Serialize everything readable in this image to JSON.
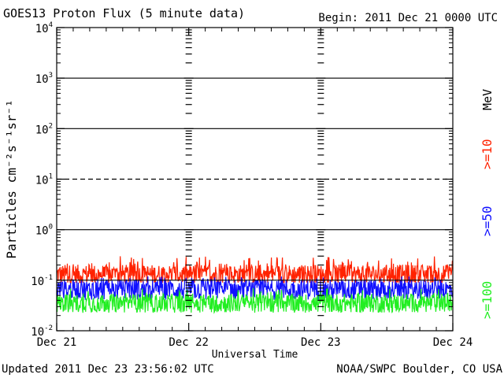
{
  "header": {
    "title": "GOES13 Proton Flux (5 minute data)",
    "begin": "Begin: 2011 Dec 21 0000 UTC"
  },
  "footer": {
    "updated": "Updated 2011 Dec 23 23:56:02 UTC",
    "credit": "NOAA/SWPC Boulder, CO USA"
  },
  "chart_data": {
    "type": "line",
    "title": "GOES13 Proton Flux (5 minute data)",
    "xlabel": "Universal Time",
    "ylabel": "Particles cm⁻²s⁻¹sr⁻¹",
    "yscale": "log",
    "ylim": [
      0.01,
      10000
    ],
    "xlim": [
      0,
      3
    ],
    "x_tick_labels": [
      "Dec 21",
      "Dec 22",
      "Dec 23",
      "Dec 24"
    ],
    "y_tick_labels": [
      {
        "base": "10",
        "exp": "4"
      },
      {
        "base": "10",
        "exp": "3"
      },
      {
        "base": "10",
        "exp": "2"
      },
      {
        "base": "10",
        "exp": "1"
      },
      {
        "base": "10",
        "exp": "0"
      },
      {
        "base": "10",
        "exp": "-1"
      },
      {
        "base": "10",
        "exp": "-2"
      }
    ],
    "threshold_lines": [
      {
        "value": 1000,
        "style": "solid"
      },
      {
        "value": 100,
        "style": "solid"
      },
      {
        "value": 10,
        "style": "dashed"
      },
      {
        "value": 1,
        "style": "solid"
      },
      {
        "value": 0.1,
        "style": "solid"
      }
    ],
    "energy_unit": "MeV",
    "series": [
      {
        "name": ">=10",
        "color": "#ff2200",
        "baseline": 0.13,
        "min": 0.09,
        "max": 0.3
      },
      {
        "name": ">=50",
        "color": "#1010ff",
        "baseline": 0.065,
        "min": 0.035,
        "max": 0.12
      },
      {
        "name": ">=100",
        "color": "#22ee22",
        "baseline": 0.035,
        "min": 0.022,
        "max": 0.07
      }
    ],
    "grid": false,
    "legend": "right"
  }
}
